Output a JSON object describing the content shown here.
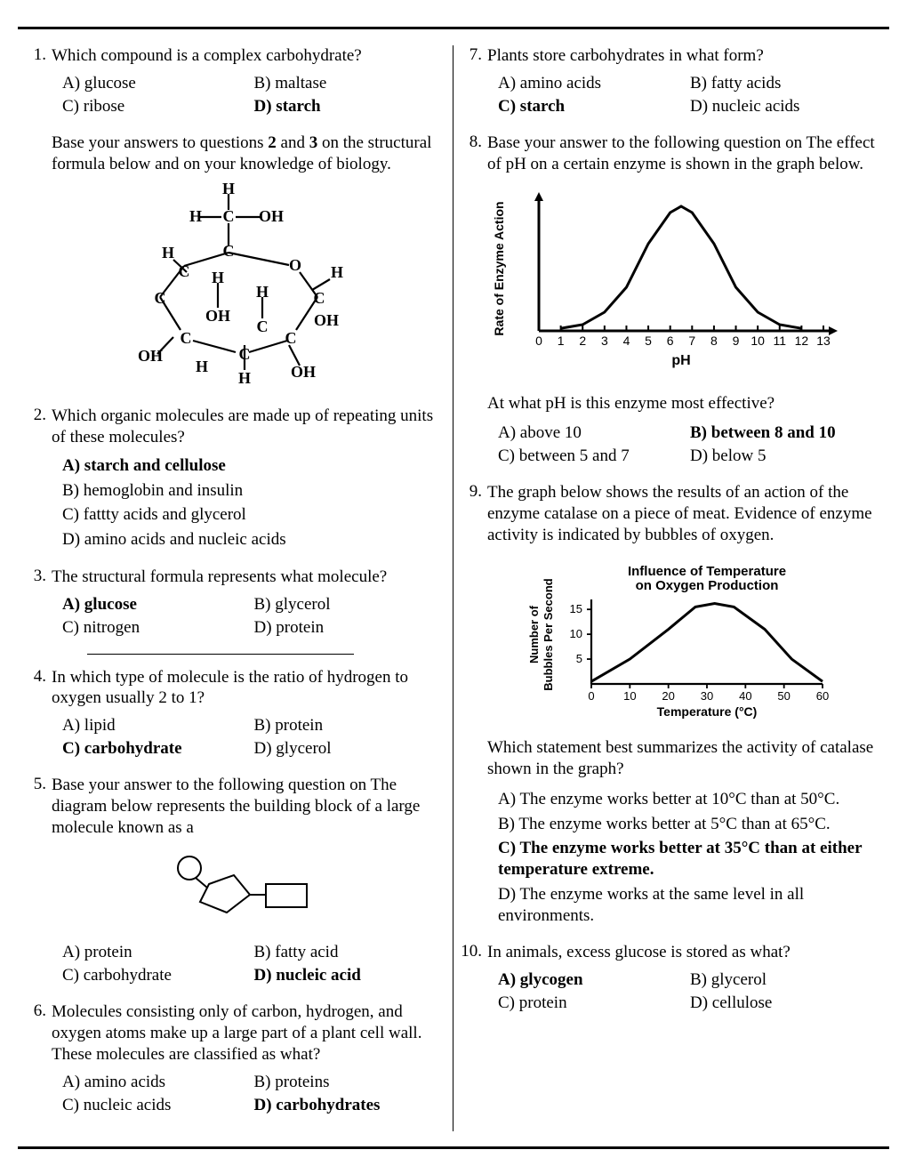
{
  "q1": {
    "num": "1.",
    "text": "Which compound is a complex carbohydrate?",
    "a": "A)  glucose",
    "b": "B)  maltase",
    "c": "C)  ribose",
    "d": "D)  starch"
  },
  "intro23": {
    "prefix": "Base your answers to questions ",
    "b1": "2",
    "mid": " and ",
    "b2": "3",
    "suffix": " on the structural formula below and on your knowledge of biology."
  },
  "q2": {
    "num": "2.",
    "text": "Which organic molecules are made up of repeating units of these molecules?",
    "a": "A)  starch and cellulose",
    "b": "B)  hemoglobin and insulin",
    "c": "C)  fattty acids and glycerol",
    "d": "D)  amino acids and nucleic acids"
  },
  "q3": {
    "num": "3.",
    "text": "The structural formula represents what molecule?",
    "a": "A)  glucose",
    "b": "B)  glycerol",
    "c": "C)  nitrogen",
    "d": "D)  protein"
  },
  "q4": {
    "num": "4.",
    "text": "In which type of molecule is the ratio of hydrogen to oxygen usually 2 to 1?",
    "a": "A)  lipid",
    "b": "B)  protein",
    "c": "C)  carbohydrate",
    "d": "D)  glycerol"
  },
  "q5": {
    "num": "5.",
    "text": "Base your answer to the following question on The diagram below represents the building block of a large molecule known as a",
    "a": "A)  protein",
    "b": "B)  fatty acid",
    "c": "C)  carbohydrate",
    "d": "D)  nucleic acid"
  },
  "q6": {
    "num": "6.",
    "text": "Molecules consisting only of carbon, hydrogen, and oxygen atoms make up a large part of a plant cell wall. These molecules are classified as what?",
    "a": "A)  amino acids",
    "b": "B)  proteins",
    "c": "C)  nucleic acids",
    "d": "D)  carbohydrates"
  },
  "q7": {
    "num": "7.",
    "text": "Plants store carbohydrates in what form?",
    "a": "A)  amino acids",
    "b": "B)  fatty acids",
    "c": "C)  starch",
    "d": "D)  nucleic acids"
  },
  "q8": {
    "num": "8.",
    "text": "Base your answer to the following question on The effect of pH on a certain enzyme is shown in the graph below.",
    "sub": "At what pH is this enzyme most effective?",
    "a": "A)  above 10",
    "b": "B)  between 8 and 10",
    "c": "C)  between 5 and 7",
    "d": "D)  below 5",
    "chart": {
      "type": "line",
      "ylabel": "Rate of Enzyme Action",
      "xlabel": "pH",
      "xticks": [
        "0",
        "1",
        "2",
        "3",
        "4",
        "5",
        "6",
        "7",
        "8",
        "9",
        "10",
        "11",
        "12",
        "13"
      ],
      "curve": [
        [
          1,
          2
        ],
        [
          2,
          5
        ],
        [
          3,
          15
        ],
        [
          4,
          35
        ],
        [
          5,
          70
        ],
        [
          6,
          95
        ],
        [
          6.5,
          100
        ],
        [
          7,
          95
        ],
        [
          8,
          70
        ],
        [
          9,
          35
        ],
        [
          10,
          15
        ],
        [
          11,
          5
        ],
        [
          12,
          2
        ]
      ],
      "stroke": "#000000",
      "stroke_width": 3,
      "axis_color": "#000000",
      "axis_width": 3,
      "label_fontsize": 14,
      "label_fontweight": "bold",
      "font": "Arial, sans-serif"
    }
  },
  "q9": {
    "num": "9.",
    "text": "The graph below shows the results of an action of the enzyme catalase on a piece of meat. Evidence of enzyme activity is indicated by bubbles of oxygen.",
    "sub": "Which statement best summarizes the activity of catalase shown in the graph?",
    "a": "A)  The enzyme works better at 10°C than at 50°C.",
    "b": "B)  The enzyme works better at 5°C than at 65°C.",
    "c": "C)  The enzyme works better at 35°C than at either temperature extreme.",
    "d": "D)  The enzyme works at the same level in all environments.",
    "chart": {
      "type": "line",
      "title": "Influence of Temperature on Oxygen Production",
      "ylabel_line1": "Number of",
      "ylabel_line2": "Bubbles Per Second",
      "xlabel": "Temperature (°C)",
      "xticks": [
        "0",
        "10",
        "20",
        "30",
        "40",
        "50",
        "60"
      ],
      "yticks": [
        "5",
        "10",
        "15"
      ],
      "curve": [
        [
          0,
          0.5
        ],
        [
          10,
          5
        ],
        [
          20,
          11
        ],
        [
          27,
          15.5
        ],
        [
          32,
          16.2
        ],
        [
          37,
          15.5
        ],
        [
          45,
          11
        ],
        [
          52,
          5
        ],
        [
          60,
          0.5
        ]
      ],
      "stroke": "#000000",
      "stroke_width": 3,
      "axis_color": "#000000",
      "axis_width": 2.2,
      "label_fontsize": 13,
      "label_fontweight": "bold",
      "font": "Arial, sans-serif"
    }
  },
  "q10": {
    "num": "10.",
    "text": "In animals, excess glucose is stored as what?",
    "a": "A)  glycogen",
    "b": "B)  glycerol",
    "c": "C)  protein",
    "d": "D)  cellulose"
  },
  "fig_glucose": {
    "labels": [
      "H",
      "H",
      "C",
      "OH",
      "C",
      "O",
      "H",
      "H",
      "H",
      "C",
      "C",
      "OH",
      "OH",
      "H",
      "OH",
      "C",
      "C",
      "H",
      "OH"
    ],
    "stroke": "#000000",
    "stroke_width": 2.2,
    "font": "Times New Roman, serif",
    "fontweight": "bold",
    "fontsize": 18
  },
  "fig_nucleotide": {
    "stroke": "#000000",
    "stroke_width": 2
  }
}
